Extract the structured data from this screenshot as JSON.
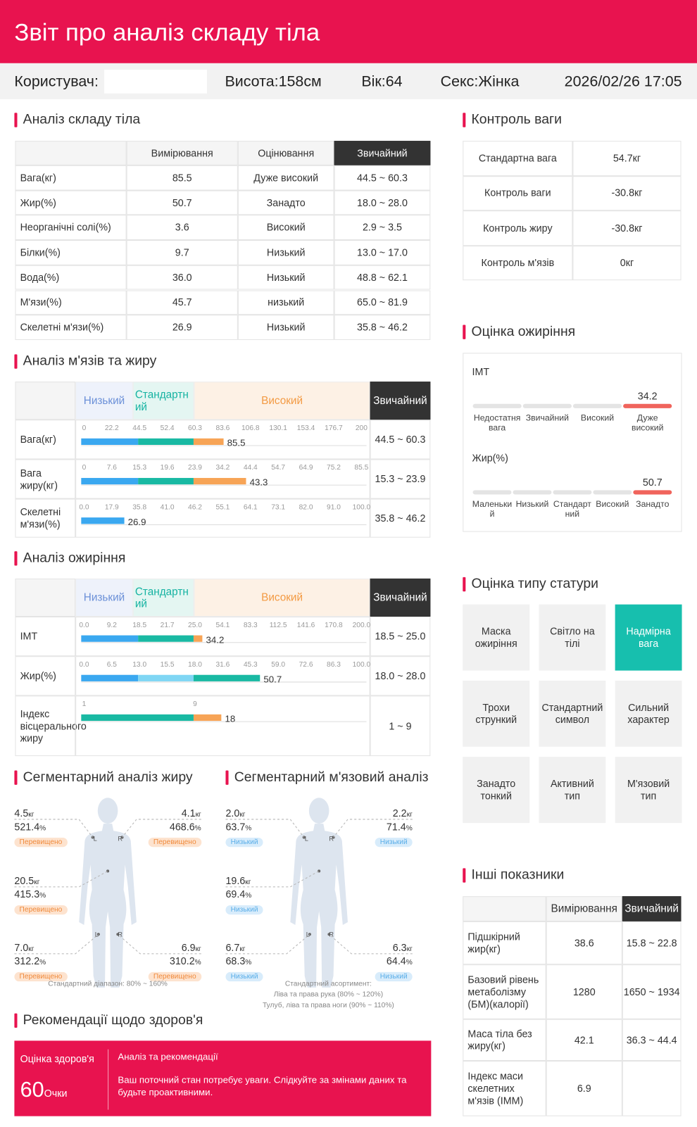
{
  "header": {
    "title": "Звіт про аналіз складу тіла"
  },
  "info": {
    "user_label": "Користувач:",
    "height": "Висота:158см",
    "age": "Вік:64",
    "sex": "Секс:Жінка",
    "datetime": "2026/02/26 17:05"
  },
  "composition": {
    "title": "Аналіз складу тіла",
    "headers": [
      "Вимірювання",
      "Оцінювання",
      "Звичайний"
    ],
    "rows": [
      [
        "Вага(кг)",
        "85.5",
        "Дуже високий",
        "44.5 ~ 60.3"
      ],
      [
        "Жир(%)",
        "50.7",
        "Занадто",
        "18.0 ~ 28.0"
      ],
      [
        "Неорганічні солі(%)",
        "3.6",
        "Високий",
        "2.9 ~ 3.5"
      ],
      [
        "Білки(%)",
        "9.7",
        "Низький",
        "13.0 ~ 17.0"
      ],
      [
        "Вода(%)",
        "36.0",
        "Низький",
        "48.8 ~ 62.1"
      ],
      [
        "М'язи(%)",
        "45.7",
        "низький",
        "65.0 ~ 81.9"
      ],
      [
        "Скелетні м'язи(%)",
        "26.9",
        "Низький",
        "35.8 ~ 46.2"
      ]
    ]
  },
  "muscle_fat": {
    "title": "Аналіз м'язів та жиру",
    "zones": [
      "Низький",
      "Стандартний",
      "Високий"
    ],
    "normal_header": "Звичайний",
    "rows": [
      {
        "label": "Вага(кг)",
        "ticks": [
          0,
          22.2,
          44.5,
          52.4,
          60.3,
          83.6,
          106.8,
          130.1,
          153.4,
          176.7,
          200
        ],
        "value": 85.5,
        "colors": [
          "#3aa8f0",
          "#19b9a3",
          "#f7a456"
        ],
        "normal": "44.5 ~ 60.3"
      },
      {
        "label": "Вага жиру(кг)",
        "ticks": [
          0,
          7.6,
          15.3,
          19.6,
          23.9,
          34.2,
          44.4,
          54.7,
          64.9,
          75.2,
          85.5
        ],
        "value": 43.3,
        "colors": [
          "#3aa8f0",
          "#19b9a3",
          "#f7a456"
        ],
        "normal": "15.3 ~ 23.9"
      },
      {
        "label": "Скелетні м'язи(%)",
        "ticks": [
          {
            "value": 0,
            "label": "0.0"
          },
          17.9,
          35.8,
          {
            "value": 41,
            "label": "41.0"
          },
          46.2,
          55.1,
          64.1,
          73.1,
          {
            "value": 82,
            "label": "82.0"
          },
          {
            "value": 91,
            "label": "91.0"
          },
          {
            "value": 100,
            "label": "100.0"
          }
        ],
        "value": 26.9,
        "colors": [
          "#3aa8f0",
          "#19b9a3",
          "#f7a456"
        ],
        "normal": "35.8 ~ 46.2"
      }
    ]
  },
  "obesity_analysis": {
    "title": "Аналіз ожиріння",
    "zones": [
      "Низький",
      "Стандартний",
      "Високий"
    ],
    "normal_header": "Звичайний",
    "rows": [
      {
        "label": "IMT",
        "ticks": [
          {
            "value": 0,
            "label": "0.0"
          },
          9.2,
          18.5,
          21.7,
          {
            "value": 25,
            "label": "25.0"
          },
          54.1,
          83.3,
          112.5,
          141.6,
          170.8,
          {
            "value": 200,
            "label": "200.0"
          }
        ],
        "value": 34.2,
        "colors": [
          "#3aa8f0",
          "#19b9a3",
          "#f7a456"
        ],
        "normal": "18.5 ~ 25.0"
      },
      {
        "label": "Жир(%)",
        "ticks": [
          {
            "value": 0,
            "label": "0.0"
          },
          6.5,
          {
            "value": 13,
            "label": "13.0"
          },
          15.5,
          {
            "value": 18,
            "label": "18.0"
          },
          31.6,
          45.3,
          {
            "value": 59,
            "label": "59.0"
          },
          72.6,
          86.3,
          {
            "value": 100,
            "label": "100.0"
          }
        ],
        "value": 50.7,
        "colors": [
          "#3aa8f0",
          "#7fd6f4",
          "#19b9a3"
        ],
        "normal": "18.0 ~ 28.0"
      },
      {
        "label": "Індекс вісцерального жиру",
        "ticks": [
          1,
          9
        ],
        "value": 18,
        "colors": [
          "#19b9a3",
          "#f7a456"
        ],
        "normal": "1 ~ 9"
      }
    ]
  },
  "segmental_fat": {
    "title": "Сегментарний аналіз жиру",
    "side_labels": [
      "L",
      "R"
    ],
    "items": [
      {
        "weight": "4.5",
        "weight_unit": "кг",
        "percent": "521.4",
        "percent_unit": "%",
        "status": "Перевищено"
      },
      {
        "weight": "4.1",
        "weight_unit": "кг",
        "percent": "468.6",
        "percent_unit": "%",
        "status": "Перевищено"
      },
      {
        "weight": "20.5",
        "weight_unit": "кг",
        "percent": "415.3",
        "percent_unit": "%",
        "status": "Перевищено"
      },
      {
        "weight": "7.0",
        "weight_unit": "кг",
        "percent": "312.2",
        "percent_unit": "%",
        "status": "Перевищено"
      },
      {
        "weight": "6.9",
        "weight_unit": "кг",
        "percent": "310.2",
        "percent_unit": "%",
        "status": "Перевищено"
      }
    ],
    "notes": [
      "Стандартний діапазон: 80% ~ 160%"
    ]
  },
  "segmental_muscle": {
    "title": "Сегментарний м'язовий аналіз",
    "side_labels": [
      "L",
      "R"
    ],
    "items": [
      {
        "weight": "2.0",
        "weight_unit": "кг",
        "percent": "63.7",
        "percent_unit": "%",
        "status": "Низький"
      },
      {
        "weight": "2.2",
        "weight_unit": "кг",
        "percent": "71.4",
        "percent_unit": "%",
        "status": "Низький"
      },
      {
        "weight": "19.6",
        "weight_unit": "кг",
        "percent": "69.4",
        "percent_unit": "%",
        "status": "Низький"
      },
      {
        "weight": "6.7",
        "weight_unit": "кг",
        "percent": "68.3",
        "percent_unit": "%",
        "status": "Низький"
      },
      {
        "weight": "6.3",
        "weight_unit": "кг",
        "percent": "64.4",
        "percent_unit": "%",
        "status": "Низький"
      }
    ],
    "notes": [
      "Стандартний асортимент:",
      "Ліва та права рука (80% ~ 120%)",
      "Тулуб, ліва та права ноги (90% ~ 110%)"
    ]
  },
  "health": {
    "title": "Рекомендації щодо здоров'я",
    "score_label": "Оцінка здоров'я",
    "score": 60,
    "score_unit": "Очки",
    "analysis_title": "Аналіз та рекомендації",
    "text": "Ваш поточний стан потребує уваги. Слідкуйте за змінами даних та будьте проактивними."
  },
  "weight_control": {
    "title": "Контроль ваги",
    "rows": [
      [
        "Стандартна вага",
        "54.7кг"
      ],
      [
        "Контроль ваги",
        "-30.8кг"
      ],
      [
        "Контроль жиру",
        "-30.8кг"
      ],
      [
        "Контроль м'язів",
        "0кг"
      ]
    ]
  },
  "obesity_assessment": {
    "title": "Оцінка ожиріння",
    "color": "#f0645c",
    "gauges": [
      {
        "label": "IMT",
        "value": 34.2,
        "segments": [
          "Недостатня вага",
          "Звичайний",
          "Високий",
          "Дуже високий"
        ],
        "active": 3
      },
      {
        "label": "Жир(%)",
        "value": 50.7,
        "segments": [
          "Маленький",
          "Низький",
          "Стандартний",
          "Високий",
          "Занадто"
        ],
        "active": 4
      }
    ]
  },
  "body_type": {
    "title": "Оцінка типу статури",
    "types": [
      "Маска ожиріння",
      "Світло на тілі",
      "Надмірна вага",
      "Трохи стрункий",
      "Стандартний символ",
      "Сильний характер",
      "Занадто тонкий",
      "Активний тип",
      "М'язовий тип"
    ],
    "active": 2
  },
  "other": {
    "title": "Інші показники",
    "headers": [
      "Вимірювання",
      "Звичайний"
    ],
    "rows": [
      [
        "Підшкірний жир(кг)",
        "38.6",
        "15.8 ~ 22.8"
      ],
      [
        "Базовий рівень метаболізму (БМ)(калорії)",
        "1280",
        "1650 ~ 1934"
      ],
      [
        "Маса тіла без жиру(кг)",
        "42.1",
        "36.3 ~ 44.4"
      ],
      [
        "Індекс маси скелетних м'язів (IMM)",
        "6.9"
      ]
    ]
  }
}
